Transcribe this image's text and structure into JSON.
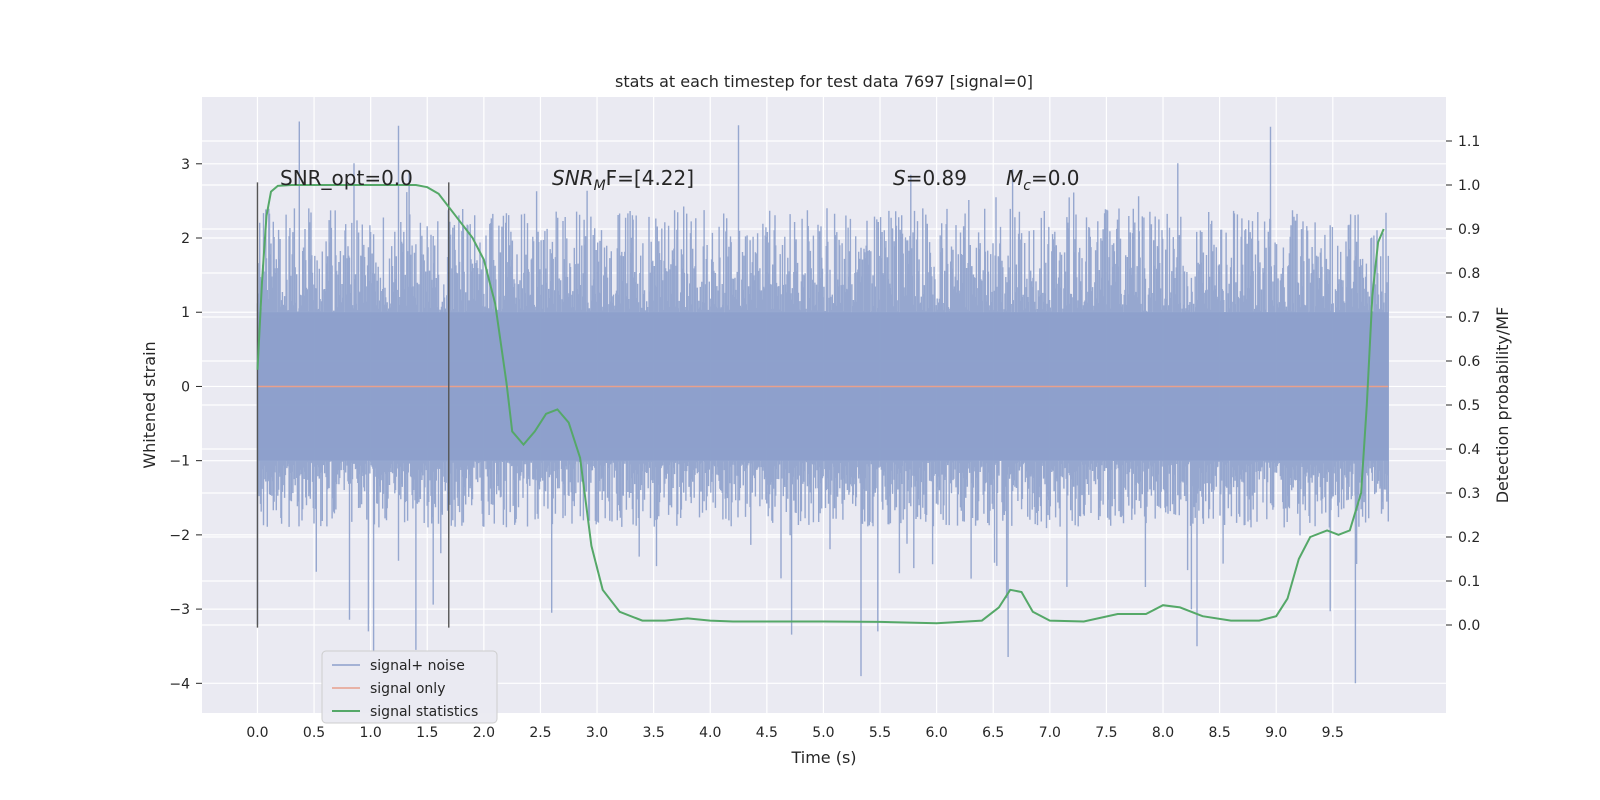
{
  "chart_data": {
    "type": "line",
    "title": "stats at each timestep for test data 7697 [signal=0]",
    "xlabel": "Time (s)",
    "ylabel": "Whitened strain",
    "ylabel_right": "Detection probability/MF",
    "xlim": [
      -0.49,
      10.5
    ],
    "ylim": [
      -4.4,
      3.9
    ],
    "ylim_right": [
      -0.2,
      1.2
    ],
    "x_ticks": [
      "0.0",
      "0.5",
      "1.0",
      "1.5",
      "2.0",
      "2.5",
      "3.0",
      "3.5",
      "4.0",
      "4.5",
      "5.0",
      "5.5",
      "6.0",
      "6.5",
      "7.0",
      "7.5",
      "8.0",
      "8.5",
      "9.0",
      "9.5"
    ],
    "y_ticks": [
      "3",
      "2",
      "1",
      "0",
      "−1",
      "−2",
      "−3",
      "−4"
    ],
    "y_ticks_right": [
      "0.0",
      "0.1",
      "0.2",
      "0.3",
      "0.4",
      "0.5",
      "0.6",
      "0.7",
      "0.8",
      "0.9",
      "1.0",
      "1.1"
    ],
    "grid": true,
    "legend_position": "lower-left",
    "annotations": {
      "snr_opt": "SNR_opt=0.0",
      "snr_mf_main": "SNR",
      "snr_mf_sub": "M",
      "snr_mf_rest": "F=[4.22]",
      "s_main": "S",
      "s_rest": "=0.89",
      "mc_main": "M",
      "mc_sub": "c",
      "mc_rest": "=0.0"
    },
    "vertical_lines_x": [
      0.0,
      1.69
    ],
    "series": [
      {
        "name": "signal+ noise",
        "color": "#8da0cb",
        "axis": "left",
        "x_range": [
          0.0,
          9.99
        ],
        "envelope_typical": [
          -1.9,
          2.4
        ],
        "envelope_extreme": [
          -4.05,
          3.6
        ],
        "spikes": [
          [
            0.37,
            3.57
          ],
          [
            1.4,
            -3.55
          ],
          [
            4.25,
            3.52
          ],
          [
            8.3,
            -3.5
          ],
          [
            9.7,
            -4.0
          ],
          [
            8.95,
            3.5
          ],
          [
            5.48,
            -3.3
          ],
          [
            0.98,
            -3.3
          ]
        ]
      },
      {
        "name": "signal only",
        "color": "#e8a08c",
        "axis": "left",
        "x": [
          0.0,
          9.99
        ],
        "y": [
          0.0,
          0.0
        ]
      },
      {
        "name": "signal statistics",
        "color": "#55a868",
        "axis": "right",
        "x": [
          0.0,
          0.04,
          0.08,
          0.12,
          0.18,
          0.3,
          0.6,
          1.0,
          1.2,
          1.4,
          1.5,
          1.6,
          1.75,
          1.9,
          2.0,
          2.1,
          2.2,
          2.25,
          2.35,
          2.45,
          2.55,
          2.65,
          2.75,
          2.85,
          2.95,
          3.05,
          3.2,
          3.4,
          3.6,
          3.8,
          4.0,
          4.2,
          4.5,
          5.0,
          5.5,
          6.0,
          6.4,
          6.55,
          6.65,
          6.75,
          6.85,
          7.0,
          7.3,
          7.6,
          7.85,
          8.0,
          8.15,
          8.35,
          8.6,
          8.85,
          9.0,
          9.1,
          9.2,
          9.3,
          9.45,
          9.55,
          9.65,
          9.75,
          9.8,
          9.85,
          9.9,
          9.95
        ],
        "y": [
          0.58,
          0.78,
          0.93,
          0.985,
          0.998,
          1.0,
          1.0,
          1.0,
          1.0,
          1.0,
          0.995,
          0.98,
          0.93,
          0.88,
          0.83,
          0.73,
          0.55,
          0.44,
          0.41,
          0.44,
          0.48,
          0.49,
          0.46,
          0.38,
          0.18,
          0.08,
          0.03,
          0.01,
          0.01,
          0.015,
          0.01,
          0.008,
          0.008,
          0.008,
          0.007,
          0.004,
          0.01,
          0.04,
          0.08,
          0.075,
          0.03,
          0.01,
          0.008,
          0.025,
          0.025,
          0.045,
          0.04,
          0.02,
          0.01,
          0.01,
          0.02,
          0.06,
          0.15,
          0.2,
          0.215,
          0.205,
          0.215,
          0.3,
          0.5,
          0.75,
          0.87,
          0.9
        ]
      }
    ]
  }
}
